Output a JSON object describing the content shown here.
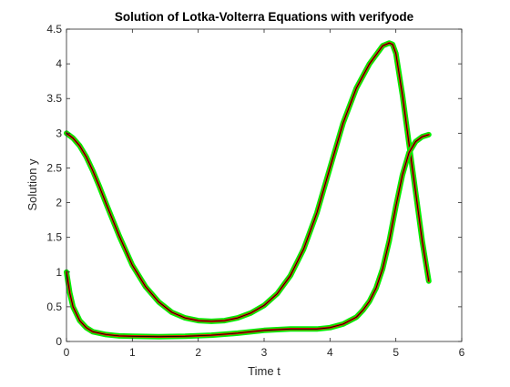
{
  "chart_data": {
    "type": "line",
    "title": "Solution of Lotka-Volterra Equations with verifyode",
    "xlabel": "Time t",
    "ylabel": "Solution y",
    "xlim": [
      0,
      6
    ],
    "ylim": [
      0,
      4.5
    ],
    "xticks": [
      "0",
      "1",
      "2",
      "3",
      "4",
      "5",
      "6"
    ],
    "yticks": [
      "0",
      "0.5",
      "1",
      "1.5",
      "2",
      "2.5",
      "3",
      "3.5",
      "4",
      "4.5"
    ],
    "grid": false,
    "legend": "none",
    "colors": {
      "band_outline": "#00ee00",
      "band_fill": "#ff0000",
      "exact_curve": "#000000",
      "axes": "#262626"
    },
    "series": [
      {
        "x": [
          0,
          0.1,
          0.2,
          0.3,
          0.4,
          0.5,
          0.6,
          0.8,
          1.0,
          1.2,
          1.4,
          1.6,
          1.8,
          2.0,
          2.2,
          2.4,
          2.6,
          2.8,
          3.0,
          3.2,
          3.4,
          3.6,
          3.8,
          4.0,
          4.2,
          4.4,
          4.6,
          4.8,
          4.9,
          4.95,
          5.0,
          5.1,
          5.2,
          5.3,
          5.4,
          5.5
        ],
        "y": [
          3.0,
          2.93,
          2.82,
          2.66,
          2.46,
          2.23,
          1.99,
          1.52,
          1.1,
          0.79,
          0.57,
          0.42,
          0.34,
          0.3,
          0.29,
          0.3,
          0.34,
          0.41,
          0.52,
          0.69,
          0.95,
          1.33,
          1.85,
          2.5,
          3.15,
          3.65,
          4.0,
          4.26,
          4.3,
          4.28,
          4.15,
          3.55,
          2.85,
          2.15,
          1.45,
          0.87
        ]
      },
      {
        "x": [
          0,
          0.05,
          0.1,
          0.2,
          0.3,
          0.4,
          0.6,
          0.8,
          1.0,
          1.4,
          1.8,
          2.2,
          2.6,
          3.0,
          3.4,
          3.6,
          3.8,
          4.0,
          4.2,
          4.4,
          4.5,
          4.6,
          4.7,
          4.8,
          4.9,
          5.0,
          5.1,
          5.2,
          5.3,
          5.4,
          5.5
        ],
        "y": [
          1.0,
          0.7,
          0.5,
          0.3,
          0.2,
          0.14,
          0.1,
          0.08,
          0.075,
          0.07,
          0.075,
          0.09,
          0.12,
          0.16,
          0.18,
          0.18,
          0.18,
          0.2,
          0.25,
          0.35,
          0.45,
          0.58,
          0.77,
          1.05,
          1.45,
          1.95,
          2.4,
          2.72,
          2.88,
          2.95,
          2.98
        ]
      }
    ]
  }
}
